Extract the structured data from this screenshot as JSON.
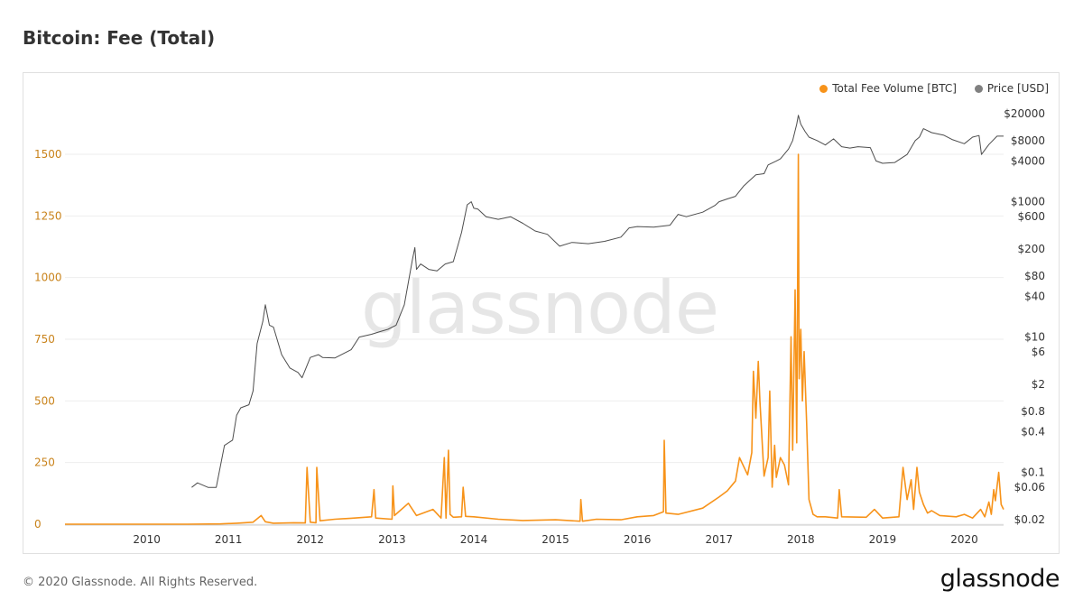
{
  "title": "Bitcoin: Fee (Total)",
  "footer": "© 2020 Glassnode. All Rights Reserved.",
  "brand": "glassnode",
  "watermark": "glassnode",
  "colors": {
    "fee": "#f7931a",
    "price": "#4d4d4d",
    "left_axis": "#c9831b",
    "grid": "#eeeeee"
  },
  "chart_data": {
    "type": "line",
    "title": "Bitcoin: Fee (Total)",
    "legend_position": "top-right",
    "grid": true,
    "x_axis": {
      "ticks": [
        "2010",
        "2011",
        "2012",
        "2013",
        "2014",
        "2015",
        "2016",
        "2017",
        "2018",
        "2019",
        "2020"
      ],
      "range": [
        2009.0,
        2020.48
      ]
    },
    "y_left": {
      "ticks": [
        0,
        250,
        500,
        750,
        1000,
        1250,
        1500
      ],
      "ylim": [
        0,
        1500
      ],
      "label": ""
    },
    "y_right": {
      "scale": "log",
      "ticks": [
        20000,
        8000,
        4000,
        1000,
        600,
        200,
        80,
        40,
        10,
        6,
        2,
        0.8,
        0.4,
        0.1,
        0.06,
        0.02
      ],
      "tick_labels": [
        "$20000",
        "$8000",
        "$4000",
        "$1000",
        "$600",
        "$200",
        "$80",
        "$40",
        "$10",
        "$6",
        "$2",
        "$0.8",
        "$0.4",
        "$0.1",
        "$0.06",
        "$0.02"
      ],
      "ylim": [
        0.02,
        20000
      ]
    },
    "series": [
      {
        "name": "Total Fee Volume [BTC]",
        "axis": "left",
        "x": [
          2009.0,
          2010.0,
          2010.5,
          2010.9,
          2011.1,
          2011.3,
          2011.4,
          2011.45,
          2011.55,
          2011.8,
          2011.94,
          2011.96,
          2012.0,
          2012.07,
          2012.08,
          2012.12,
          2012.3,
          2012.5,
          2012.75,
          2012.78,
          2012.8,
          2013.0,
          2013.01,
          2013.03,
          2013.2,
          2013.3,
          2013.5,
          2013.6,
          2013.64,
          2013.66,
          2013.69,
          2013.71,
          2013.75,
          2013.85,
          2013.87,
          2013.9,
          2014.0,
          2014.3,
          2014.6,
          2015.0,
          2015.3,
          2015.31,
          2015.33,
          2015.5,
          2015.8,
          2016.0,
          2016.2,
          2016.32,
          2016.33,
          2016.35,
          2016.5,
          2016.8,
          2017.0,
          2017.1,
          2017.2,
          2017.25,
          2017.35,
          2017.4,
          2017.42,
          2017.45,
          2017.48,
          2017.5,
          2017.55,
          2017.6,
          2017.62,
          2017.65,
          2017.68,
          2017.7,
          2017.75,
          2017.8,
          2017.85,
          2017.88,
          2017.9,
          2017.93,
          2017.95,
          2017.97,
          2017.98,
          2018.0,
          2018.02,
          2018.04,
          2018.07,
          2018.1,
          2018.15,
          2018.2,
          2018.3,
          2018.45,
          2018.47,
          2018.5,
          2018.8,
          2018.9,
          2019.0,
          2019.2,
          2019.25,
          2019.3,
          2019.35,
          2019.38,
          2019.42,
          2019.45,
          2019.5,
          2019.55,
          2019.6,
          2019.7,
          2019.9,
          2020.0,
          2020.1,
          2020.2,
          2020.25,
          2020.3,
          2020.33,
          2020.36,
          2020.38,
          2020.42,
          2020.45,
          2020.48
        ],
        "values": [
          0,
          0,
          0,
          1,
          4,
          8,
          35,
          10,
          4,
          6,
          5,
          230,
          8,
          6,
          230,
          14,
          20,
          24,
          30,
          140,
          25,
          20,
          155,
          35,
          85,
          35,
          60,
          25,
          270,
          25,
          300,
          40,
          28,
          30,
          150,
          32,
          30,
          20,
          15,
          18,
          12,
          100,
          12,
          20,
          18,
          30,
          35,
          50,
          340,
          45,
          40,
          65,
          110,
          135,
          175,
          270,
          200,
          290,
          620,
          430,
          660,
          500,
          195,
          270,
          540,
          150,
          320,
          190,
          270,
          240,
          160,
          760,
          300,
          950,
          330,
          1500,
          590,
          790,
          500,
          700,
          420,
          100,
          40,
          30,
          30,
          25,
          140,
          30,
          28,
          60,
          25,
          30,
          230,
          100,
          180,
          60,
          230,
          130,
          80,
          45,
          55,
          35,
          30,
          40,
          25,
          60,
          30,
          90,
          40,
          140,
          95,
          210,
          80,
          60
        ]
      },
      {
        "name": "Price [USD]",
        "axis": "right",
        "scale": "log",
        "x": [
          2010.55,
          2010.62,
          2010.75,
          2010.85,
          2010.95,
          2011.05,
          2011.1,
          2011.15,
          2011.25,
          2011.3,
          2011.35,
          2011.42,
          2011.45,
          2011.5,
          2011.55,
          2011.65,
          2011.75,
          2011.85,
          2011.9,
          2012.0,
          2012.1,
          2012.15,
          2012.3,
          2012.5,
          2012.6,
          2012.75,
          2012.85,
          2012.95,
          2013.05,
          2013.15,
          2013.25,
          2013.28,
          2013.3,
          2013.35,
          2013.45,
          2013.55,
          2013.65,
          2013.75,
          2013.85,
          2013.92,
          2013.97,
          2014.0,
          2014.05,
          2014.15,
          2014.3,
          2014.45,
          2014.6,
          2014.75,
          2014.9,
          2015.05,
          2015.2,
          2015.4,
          2015.6,
          2015.8,
          2015.9,
          2016.0,
          2016.2,
          2016.4,
          2016.5,
          2016.6,
          2016.8,
          2016.95,
          2017.0,
          2017.1,
          2017.2,
          2017.3,
          2017.45,
          2017.55,
          2017.6,
          2017.7,
          2017.75,
          2017.85,
          2017.9,
          2017.95,
          2017.97,
          2018.0,
          2018.05,
          2018.1,
          2018.2,
          2018.3,
          2018.4,
          2018.5,
          2018.6,
          2018.7,
          2018.85,
          2018.92,
          2019.0,
          2019.15,
          2019.3,
          2019.4,
          2019.45,
          2019.5,
          2019.6,
          2019.75,
          2019.85,
          2020.0,
          2020.1,
          2020.18,
          2020.21,
          2020.3,
          2020.4,
          2020.48
        ],
        "values": [
          0.06,
          0.07,
          0.06,
          0.06,
          0.25,
          0.3,
          0.7,
          0.9,
          1.0,
          1.6,
          8,
          17,
          30,
          15,
          14,
          5.5,
          3.5,
          3.0,
          2.5,
          5,
          5.5,
          5,
          4.9,
          6.5,
          10,
          11,
          12,
          13,
          15,
          30,
          140,
          210,
          100,
          120,
          100,
          95,
          120,
          130,
          350,
          900,
          1000,
          800,
          780,
          600,
          550,
          600,
          480,
          370,
          330,
          220,
          250,
          240,
          260,
          300,
          410,
          430,
          420,
          450,
          650,
          600,
          700,
          880,
          1000,
          1100,
          1200,
          1700,
          2500,
          2600,
          3500,
          4000,
          4300,
          6000,
          8000,
          14000,
          19000,
          14000,
          11000,
          9000,
          8000,
          6900,
          8500,
          6500,
          6200,
          6500,
          6300,
          4000,
          3700,
          3800,
          5000,
          8000,
          9000,
          12000,
          10500,
          9600,
          8300,
          7200,
          9000,
          9500,
          5000,
          7000,
          9300,
          9300
        ]
      }
    ]
  }
}
